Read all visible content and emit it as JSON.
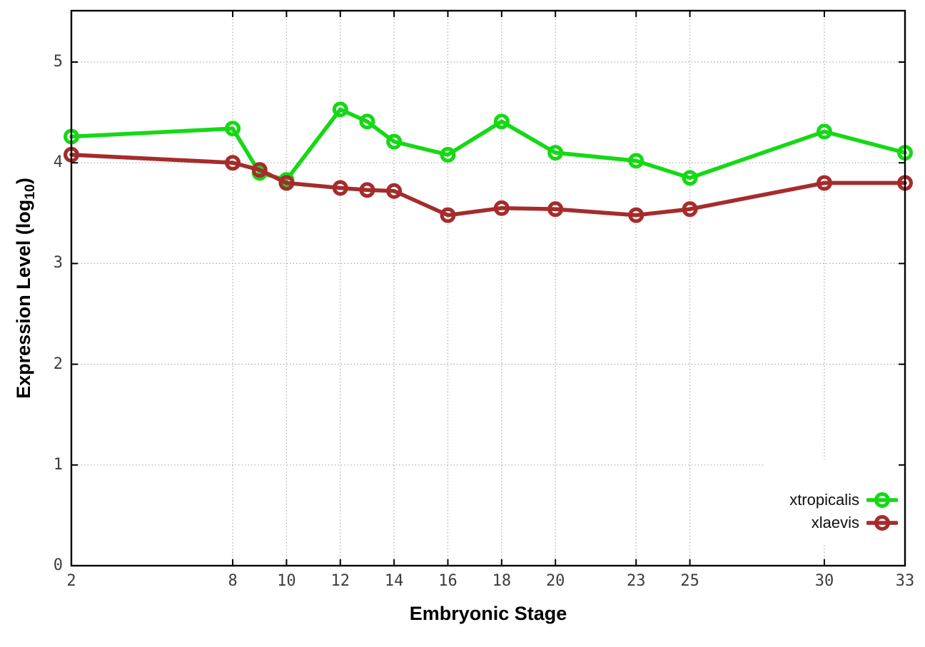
{
  "chart_data": {
    "type": "line",
    "title": "",
    "xlabel": "Embryonic Stage",
    "ylabel_prefix": "Expression Level (log",
    "ylabel_sub": "10",
    "ylabel_suffix": ")",
    "x": [
      2,
      8,
      9,
      10,
      12,
      13,
      14,
      16,
      18,
      20,
      23,
      25,
      30,
      33
    ],
    "series": [
      {
        "name": "xtropicalis",
        "color": "#16d816",
        "values": [
          4.26,
          4.34,
          3.9,
          3.83,
          4.53,
          4.41,
          4.21,
          4.08,
          4.41,
          4.1,
          4.02,
          3.85,
          4.31,
          4.1
        ]
      },
      {
        "name": "xlaevis",
        "color": "#a52c2c",
        "values": [
          4.08,
          4.0,
          3.93,
          3.8,
          3.75,
          3.73,
          3.72,
          3.48,
          3.55,
          3.54,
          3.48,
          3.54,
          3.8,
          3.8
        ]
      }
    ],
    "xticks": [
      2,
      8,
      10,
      12,
      14,
      16,
      18,
      20,
      23,
      25,
      30,
      33
    ],
    "yticks": [
      0,
      1,
      2,
      3,
      4,
      5
    ],
    "xlim": [
      2,
      33
    ],
    "ylim": [
      0,
      5.51
    ],
    "grid": true,
    "legend_position": "bottom-right",
    "marker": "open-circle"
  },
  "colors": {
    "background": "#ffffff",
    "border": "#000000",
    "grid": "#ababab",
    "tick_label": "#3d3d3d",
    "title": "#000000",
    "legend_text": "#101010"
  }
}
